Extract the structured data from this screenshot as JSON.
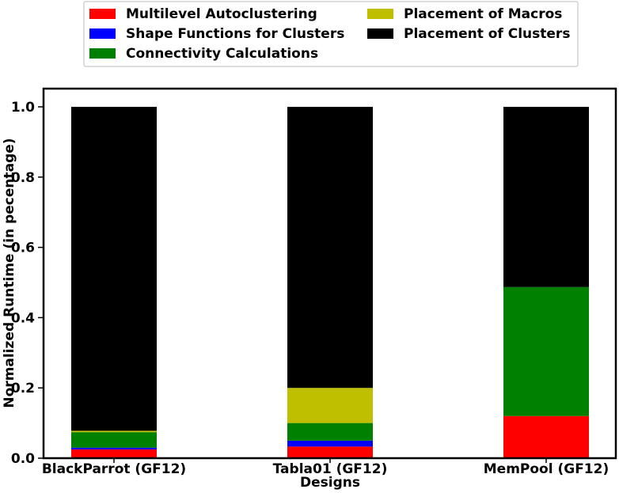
{
  "chart_data": {
    "type": "bar",
    "stacked": true,
    "xlabel": "Designs",
    "ylabel": "Normalized Runtime (in pecentage)",
    "ylim": [
      0,
      1.0
    ],
    "yticks": [
      "0.0",
      "0.2",
      "0.4",
      "0.6",
      "0.8",
      "1.0"
    ],
    "categories": [
      "BlackParrot (GF12)",
      "Tabla01 (GF12)",
      "MemPool (GF12)"
    ],
    "legend_position": "top-center",
    "grid": false,
    "series": [
      {
        "name": "Multilevel Autoclustering",
        "color": "#ff0000",
        "values": [
          0.025,
          0.033,
          0.12
        ]
      },
      {
        "name": "Shape Functions for Clusters",
        "color": "#0000ff",
        "values": [
          0.005,
          0.017,
          0.0
        ]
      },
      {
        "name": "Connectivity Calculations",
        "color": "#008000",
        "values": [
          0.044,
          0.05,
          0.367
        ]
      },
      {
        "name": "Placement of Macros",
        "color": "#bfbf00",
        "values": [
          0.004,
          0.1,
          0.0
        ]
      },
      {
        "name": "Placement of Clusters",
        "color": "#000000",
        "values": [
          0.922,
          0.8,
          0.513
        ]
      }
    ]
  }
}
